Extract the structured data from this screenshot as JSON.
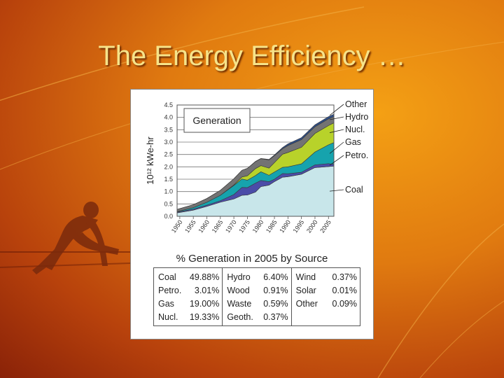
{
  "slide": {
    "title": "The Energy Efficiency …"
  },
  "chart_data": {
    "type": "area",
    "stacked": true,
    "title": "Generation",
    "ylabel": "10¹² kWe-hr",
    "xlabel": "",
    "xlim": [
      1949,
      2007
    ],
    "ylim": [
      0,
      4.5
    ],
    "yticks": [
      0.0,
      0.5,
      1.0,
      1.5,
      2.0,
      2.5,
      3.0,
      3.5,
      4.0,
      4.5
    ],
    "ytick_labels": [
      "0.0",
      "0.5",
      "1.0",
      "1.5",
      "2.0",
      "2.5",
      "3.0",
      "3.5",
      "4.0",
      "4.5"
    ],
    "xticks": [
      "1950",
      "1955",
      "1960",
      "1965",
      "1970",
      "1975",
      "1980",
      "1985",
      "1990",
      "1995",
      "2000",
      "2005"
    ],
    "grid": "horizontal",
    "x": [
      1949,
      1955,
      1960,
      1965,
      1970,
      1973,
      1975,
      1978,
      1980,
      1983,
      1985,
      1988,
      1990,
      1995,
      2000,
      2005,
      2007
    ],
    "series": [
      {
        "name": "Coal",
        "color": "#c8e6ea",
        "values": [
          0.14,
          0.25,
          0.4,
          0.57,
          0.7,
          0.85,
          0.86,
          0.98,
          1.2,
          1.26,
          1.4,
          1.58,
          1.6,
          1.7,
          1.97,
          2.01,
          2.03
        ]
      },
      {
        "name": "Petro.",
        "color": "#4b4ca8",
        "values": [
          0.03,
          0.04,
          0.05,
          0.06,
          0.18,
          0.32,
          0.3,
          0.36,
          0.25,
          0.14,
          0.1,
          0.15,
          0.12,
          0.08,
          0.11,
          0.12,
          0.07
        ]
      },
      {
        "name": "Gas",
        "color": "#16a3ad",
        "values": [
          0.02,
          0.06,
          0.12,
          0.22,
          0.37,
          0.34,
          0.3,
          0.31,
          0.35,
          0.26,
          0.29,
          0.25,
          0.28,
          0.34,
          0.52,
          0.76,
          0.88
        ]
      },
      {
        "name": "Nucl.",
        "color": "#b8d22a",
        "values": [
          0.0,
          0.0,
          0.0,
          0.0,
          0.02,
          0.08,
          0.18,
          0.28,
          0.25,
          0.29,
          0.38,
          0.53,
          0.58,
          0.67,
          0.75,
          0.78,
          0.8
        ]
      },
      {
        "name": "Hydro",
        "color": "#737373",
        "values": [
          0.09,
          0.12,
          0.15,
          0.2,
          0.25,
          0.27,
          0.3,
          0.28,
          0.28,
          0.33,
          0.28,
          0.22,
          0.28,
          0.31,
          0.27,
          0.27,
          0.25
        ]
      },
      {
        "name": "Other",
        "color": "#2d4d86",
        "values": [
          0.0,
          0.0,
          0.0,
          0.0,
          0.0,
          0.0,
          0.0,
          0.01,
          0.01,
          0.02,
          0.03,
          0.05,
          0.07,
          0.08,
          0.08,
          0.09,
          0.1
        ]
      }
    ],
    "legend_placement": "right"
  },
  "table": {
    "title": "% Generation in 2005 by Source",
    "rows": [
      [
        [
          "Coal",
          "49.88%"
        ],
        [
          "Hydro",
          "6.40%"
        ],
        [
          "Wind",
          "0.37%"
        ]
      ],
      [
        [
          "Petro.",
          "3.01%"
        ],
        [
          "Wood",
          "0.91%"
        ],
        [
          "Solar",
          "0.01%"
        ]
      ],
      [
        [
          "Gas",
          "19.00%"
        ],
        [
          "Waste",
          "0.59%"
        ],
        [
          "Other",
          "0.09%"
        ]
      ],
      [
        [
          "Nucl.",
          "19.33%"
        ],
        [
          "Geoth.",
          "0.37%"
        ],
        [
          "",
          ""
        ]
      ]
    ]
  }
}
